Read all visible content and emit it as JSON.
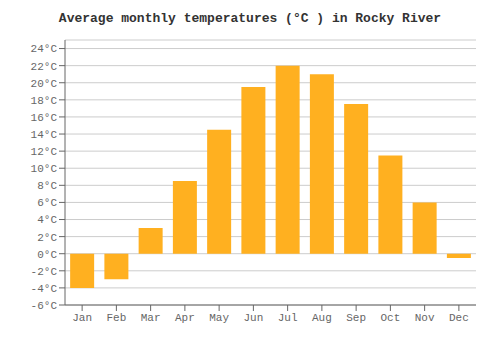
{
  "chart_data": {
    "type": "bar",
    "title": "Average monthly temperatures (°C ) in Rocky River",
    "categories": [
      "Jan",
      "Feb",
      "Mar",
      "Apr",
      "May",
      "Jun",
      "Jul",
      "Aug",
      "Sep",
      "Oct",
      "Nov",
      "Dec"
    ],
    "values": [
      -4.0,
      -3.0,
      3.0,
      8.5,
      14.5,
      19.5,
      22.0,
      21.0,
      17.5,
      11.5,
      6.0,
      -0.5
    ],
    "color": "#FFB020",
    "ylim": [
      -6,
      25
    ],
    "yticks": [
      {
        "value": -6,
        "label": "-6°C"
      },
      {
        "value": -4,
        "label": "-4°C"
      },
      {
        "value": -2,
        "label": "-2°C"
      },
      {
        "value": 0,
        "label": "0°C"
      },
      {
        "value": 2,
        "label": "2°C"
      },
      {
        "value": 4,
        "label": "4°C"
      },
      {
        "value": 6,
        "label": "6°C"
      },
      {
        "value": 8,
        "label": "8°C"
      },
      {
        "value": 10,
        "label": "10°C"
      },
      {
        "value": 12,
        "label": "12°C"
      },
      {
        "value": 14,
        "label": "14°C"
      },
      {
        "value": 16,
        "label": "16°C"
      },
      {
        "value": 18,
        "label": "18°C"
      },
      {
        "value": 20,
        "label": "20°C"
      },
      {
        "value": 22,
        "label": "22°C"
      },
      {
        "value": 24,
        "label": "24°C"
      }
    ],
    "grid": true
  }
}
